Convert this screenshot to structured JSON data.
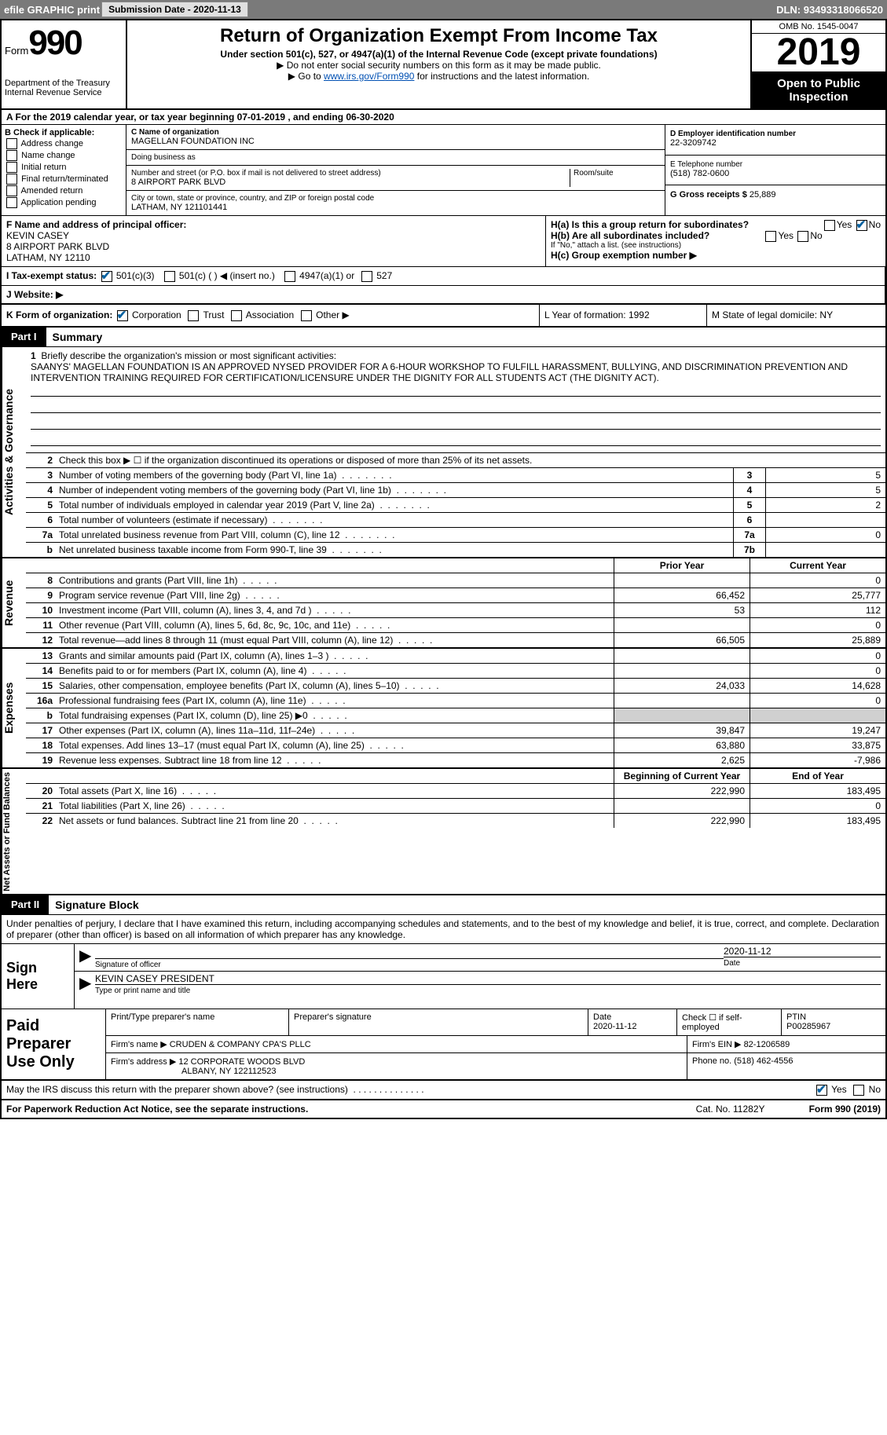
{
  "topbar": {
    "efile": "efile GRAPHIC print",
    "sub_label": "Submission Date - ",
    "sub_date": "2020-11-13",
    "dln_label": "DLN: ",
    "dln": "93493318066520"
  },
  "header": {
    "form_prefix": "Form",
    "form_number": "990",
    "dept": "Department of the Treasury\nInternal Revenue Service",
    "title": "Return of Organization Exempt From Income Tax",
    "subtitle": "Under section 501(c), 527, or 4947(a)(1) of the Internal Revenue Code (except private foundations)",
    "note1": "▶ Do not enter social security numbers on this form as it may be made public.",
    "note2_pre": "▶ Go to ",
    "note2_link": "www.irs.gov/Form990",
    "note2_post": " for instructions and the latest information.",
    "omb": "OMB No. 1545-0047",
    "year": "2019",
    "open_tag": "Open to Public Inspection"
  },
  "line_a": "A For the 2019 calendar year, or tax year beginning 07-01-2019   , and ending 06-30-2020",
  "section_b": {
    "label": "B Check if applicable:",
    "options": [
      "Address change",
      "Name change",
      "Initial return",
      "Final return/terminated",
      "Amended return",
      "Application pending"
    ]
  },
  "section_c": {
    "name_label": "C Name of organization",
    "name": "MAGELLAN FOUNDATION INC",
    "dba_label": "Doing business as",
    "dba": "",
    "addr_label": "Number and street (or P.O. box if mail is not delivered to street address)",
    "room_label": "Room/suite",
    "addr": "8 AIRPORT PARK BLVD",
    "city_label": "City or town, state or province, country, and ZIP or foreign postal code",
    "city": "LATHAM, NY  121101441"
  },
  "section_d": {
    "ein_label": "D Employer identification number",
    "ein": "22-3209742",
    "phone_label": "E Telephone number",
    "phone": "(518) 782-0600",
    "gross_label": "G Gross receipts $ ",
    "gross": "25,889"
  },
  "section_f": {
    "label": "F Name and address of principal officer:",
    "name": "KEVIN CASEY",
    "addr1": "8 AIRPORT PARK BLVD",
    "addr2": "LATHAM, NY  12110"
  },
  "section_h": {
    "h_a": "H(a)  Is this a group return for subordinates?",
    "h_b": "H(b)  Are all subordinates included?",
    "h_b_note": "If \"No,\" attach a list. (see instructions)",
    "h_c": "H(c)  Group exemption number ▶"
  },
  "section_i": {
    "label": "I  Tax-exempt status:",
    "opt1": "501(c)(3)",
    "opt2": "501(c) (  ) ◀ (insert no.)",
    "opt3": "4947(a)(1) or",
    "opt4": "527"
  },
  "section_j": {
    "label": "J  Website: ▶"
  },
  "section_k": {
    "label": "K Form of organization:",
    "opts": [
      "Corporation",
      "Trust",
      "Association",
      "Other ▶"
    ],
    "l": "L Year of formation: 1992",
    "m": "M State of legal domicile: NY"
  },
  "part1": {
    "tag": "Part I",
    "title": "Summary",
    "tabs": [
      "Activities & Governance",
      "Revenue",
      "Expenses",
      "Net Assets or Fund Balances"
    ],
    "line1_label": "Briefly describe the organization's mission or most significant activities:",
    "mission": "SAANYS' MAGELLAN FOUNDATION IS AN APPROVED NYSED PROVIDER FOR A 6-HOUR WORKSHOP TO FULFILL HARASSMENT, BULLYING, AND DISCRIMINATION PREVENTION AND INTERVENTION TRAINING REQUIRED FOR CERTIFICATION/LICENSURE UNDER THE DIGNITY FOR ALL STUDENTS ACT (THE DIGNITY ACT).",
    "line2": "Check this box ▶ ☐  if the organization discontinued its operations or disposed of more than 25% of its net assets.",
    "gov_lines": [
      {
        "n": "3",
        "d": "Number of voting members of the governing body (Part VI, line 1a)",
        "box": "3",
        "v": "5"
      },
      {
        "n": "4",
        "d": "Number of independent voting members of the governing body (Part VI, line 1b)",
        "box": "4",
        "v": "5"
      },
      {
        "n": "5",
        "d": "Total number of individuals employed in calendar year 2019 (Part V, line 2a)",
        "box": "5",
        "v": "2"
      },
      {
        "n": "6",
        "d": "Total number of volunteers (estimate if necessary)",
        "box": "6",
        "v": ""
      },
      {
        "n": "7a",
        "d": "Total unrelated business revenue from Part VIII, column (C), line 12",
        "box": "7a",
        "v": "0"
      },
      {
        "n": "b",
        "d": "Net unrelated business taxable income from Form 990-T, line 39",
        "box": "7b",
        "v": ""
      }
    ],
    "col_hdr_prior": "Prior Year",
    "col_hdr_curr": "Current Year",
    "rev_lines": [
      {
        "n": "8",
        "d": "Contributions and grants (Part VIII, line 1h)",
        "p": "",
        "c": "0"
      },
      {
        "n": "9",
        "d": "Program service revenue (Part VIII, line 2g)",
        "p": "66,452",
        "c": "25,777"
      },
      {
        "n": "10",
        "d": "Investment income (Part VIII, column (A), lines 3, 4, and 7d )",
        "p": "53",
        "c": "112"
      },
      {
        "n": "11",
        "d": "Other revenue (Part VIII, column (A), lines 5, 6d, 8c, 9c, 10c, and 11e)",
        "p": "",
        "c": "0"
      },
      {
        "n": "12",
        "d": "Total revenue—add lines 8 through 11 (must equal Part VIII, column (A), line 12)",
        "p": "66,505",
        "c": "25,889"
      }
    ],
    "exp_lines": [
      {
        "n": "13",
        "d": "Grants and similar amounts paid (Part IX, column (A), lines 1–3 )",
        "p": "",
        "c": "0"
      },
      {
        "n": "14",
        "d": "Benefits paid to or for members (Part IX, column (A), line 4)",
        "p": "",
        "c": "0"
      },
      {
        "n": "15",
        "d": "Salaries, other compensation, employee benefits (Part IX, column (A), lines 5–10)",
        "p": "24,033",
        "c": "14,628"
      },
      {
        "n": "16a",
        "d": "Professional fundraising fees (Part IX, column (A), line 11e)",
        "p": "",
        "c": "0"
      },
      {
        "n": "b",
        "d": "Total fundraising expenses (Part IX, column (D), line 25) ▶0",
        "p": "SHADE",
        "c": "SHADE"
      },
      {
        "n": "17",
        "d": "Other expenses (Part IX, column (A), lines 11a–11d, 11f–24e)",
        "p": "39,847",
        "c": "19,247"
      },
      {
        "n": "18",
        "d": "Total expenses. Add lines 13–17 (must equal Part IX, column (A), line 25)",
        "p": "63,880",
        "c": "33,875"
      },
      {
        "n": "19",
        "d": "Revenue less expenses. Subtract line 18 from line 12",
        "p": "2,625",
        "c": "-7,986"
      }
    ],
    "na_hdr_prior": "Beginning of Current Year",
    "na_hdr_curr": "End of Year",
    "na_lines": [
      {
        "n": "20",
        "d": "Total assets (Part X, line 16)",
        "p": "222,990",
        "c": "183,495"
      },
      {
        "n": "21",
        "d": "Total liabilities (Part X, line 26)",
        "p": "",
        "c": "0"
      },
      {
        "n": "22",
        "d": "Net assets or fund balances. Subtract line 21 from line 20",
        "p": "222,990",
        "c": "183,495"
      }
    ]
  },
  "part2": {
    "tag": "Part II",
    "title": "Signature Block",
    "intro": "Under penalties of perjury, I declare that I have examined this return, including accompanying schedules and statements, and to the best of my knowledge and belief, it is true, correct, and complete. Declaration of preparer (other than officer) is based on all information of which preparer has any knowledge.",
    "sign_here": "Sign Here",
    "sig_officer": "Signature of officer",
    "sig_date_label": "Date",
    "sig_date": "2020-11-12",
    "officer_name": "KEVIN CASEY PRESIDENT",
    "officer_type": "Type or print name and title",
    "paid_label": "Paid Preparer Use Only",
    "prep_name_label": "Print/Type preparer's name",
    "prep_sig_label": "Preparer's signature",
    "prep_date_label": "Date",
    "prep_date": "2020-11-12",
    "prep_check": "Check ☐ if self-employed",
    "ptin_label": "PTIN",
    "ptin": "P00285967",
    "firm_name_label": "Firm's name   ▶ ",
    "firm_name": "CRUDEN & COMPANY CPA'S PLLC",
    "firm_ein_label": "Firm's EIN ▶ ",
    "firm_ein": "82-1206589",
    "firm_addr_label": "Firm's address ▶ ",
    "firm_addr1": "12 CORPORATE WOODS BLVD",
    "firm_addr2": "ALBANY, NY  122112523",
    "firm_phone_label": "Phone no. ",
    "firm_phone": "(518) 462-4556",
    "discuss": "May the IRS discuss this return with the preparer shown above? (see instructions)"
  },
  "footer": {
    "pra": "For Paperwork Reduction Act Notice, see the separate instructions.",
    "cat": "Cat. No. 11282Y",
    "form": "Form 990 (2019)"
  },
  "yesno": {
    "yes": "Yes",
    "no": "No"
  }
}
